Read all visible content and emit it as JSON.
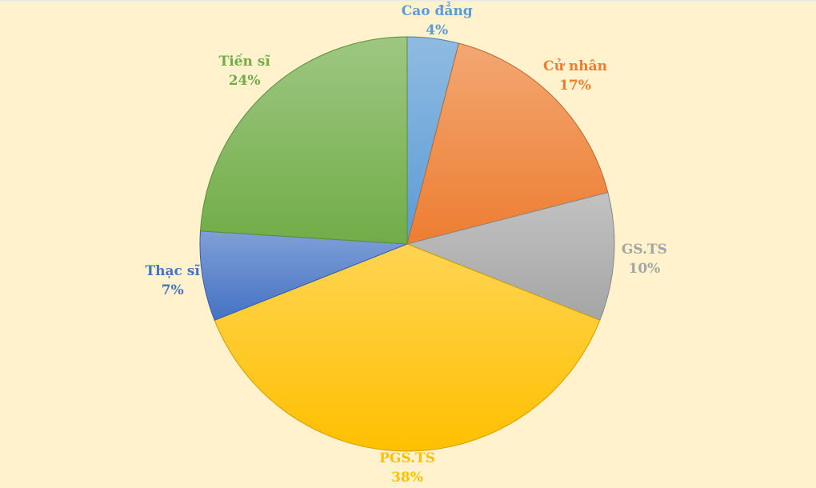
{
  "page": {
    "background_color": "#FFF2CC",
    "top_edge_color": "#EBEAE6"
  },
  "chart_data": {
    "type": "pie",
    "start_angle_deg": 0,
    "direction": "clockwise",
    "labels_position": "outside",
    "legend": "none",
    "slices": [
      {
        "key": "cao-dang",
        "label": "Cao đẳng",
        "value": 4,
        "display": "4%",
        "color": "#5B9BD5"
      },
      {
        "key": "cu-nhan",
        "label": "Cử nhân",
        "value": 17,
        "display": "17%",
        "color": "#ED7D31"
      },
      {
        "key": "gs-ts",
        "label": "GS.TS",
        "value": 10,
        "display": "10%",
        "color": "#A5A5A5"
      },
      {
        "key": "pgs-ts",
        "label": "PGS.TS",
        "value": 38,
        "display": "38%",
        "color": "#FFC000"
      },
      {
        "key": "thac-si",
        "label": "Thạc sĩ",
        "value": 7,
        "display": "7%",
        "color": "#4472C4"
      },
      {
        "key": "tien-si",
        "label": "Tiến sĩ",
        "value": 24,
        "display": "24%",
        "color": "#70AD47"
      }
    ]
  }
}
